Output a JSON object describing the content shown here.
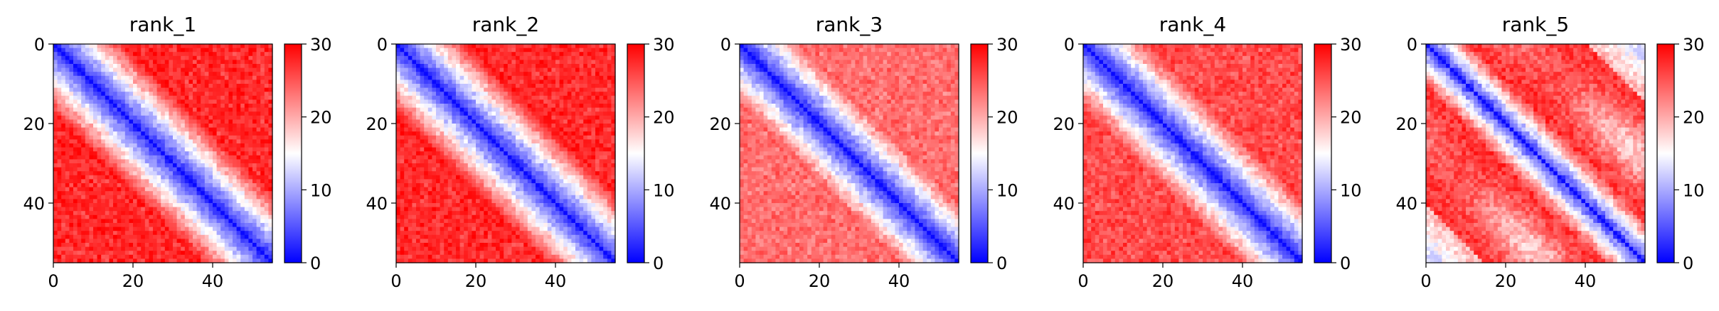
{
  "chart_data": [
    {
      "type": "heatmap",
      "title": "rank_1",
      "x_ticks": [
        0,
        20,
        40
      ],
      "y_ticks": [
        0,
        20,
        40
      ],
      "grid_size": 55,
      "colorbar": {
        "ticks": [
          0,
          10,
          20,
          30
        ],
        "range": [
          0,
          30
        ],
        "colormap": "bwr"
      },
      "values": "symmetric pairwise distance matrix: ~0 on diagonal, rising to ~30 away from diagonal",
      "pattern": "diagonal"
    },
    {
      "type": "heatmap",
      "title": "rank_2",
      "x_ticks": [
        0,
        20,
        40
      ],
      "y_ticks": [
        0,
        20,
        40
      ],
      "grid_size": 55,
      "colorbar": {
        "ticks": [
          0,
          10,
          20,
          30
        ],
        "range": [
          0,
          30
        ],
        "colormap": "bwr"
      },
      "values": "symmetric pairwise distance matrix: ~0 on diagonal, rising to ~30 away from diagonal",
      "pattern": "diagonal"
    },
    {
      "type": "heatmap",
      "title": "rank_3",
      "x_ticks": [
        0,
        20,
        40
      ],
      "y_ticks": [
        0,
        20,
        40
      ],
      "grid_size": 55,
      "colorbar": {
        "ticks": [
          0,
          10,
          20,
          30
        ],
        "range": [
          0,
          30
        ],
        "colormap": "bwr"
      },
      "values": "symmetric pairwise distance matrix: ~0 on diagonal, rising to ~25 away from diagonal",
      "pattern": "diagonal"
    },
    {
      "type": "heatmap",
      "title": "rank_4",
      "x_ticks": [
        0,
        20,
        40
      ],
      "y_ticks": [
        0,
        20,
        40
      ],
      "grid_size": 55,
      "colorbar": {
        "ticks": [
          0,
          10,
          20,
          30
        ],
        "range": [
          0,
          30
        ],
        "colormap": "bwr"
      },
      "values": "symmetric pairwise distance matrix: ~0 on diagonal, rising to ~27 away from diagonal",
      "pattern": "diagonal"
    },
    {
      "type": "heatmap",
      "title": "rank_5",
      "x_ticks": [
        0,
        20,
        40
      ],
      "y_ticks": [
        0,
        20,
        40
      ],
      "grid_size": 55,
      "colorbar": {
        "ticks": [
          0,
          10,
          20,
          30
        ],
        "range": [
          0,
          30
        ],
        "colormap": "bwr"
      },
      "values": "pairwise distance matrix with diagonal band plus off-diagonal low-distance regions (ring-like structure)",
      "pattern": "rings"
    }
  ]
}
